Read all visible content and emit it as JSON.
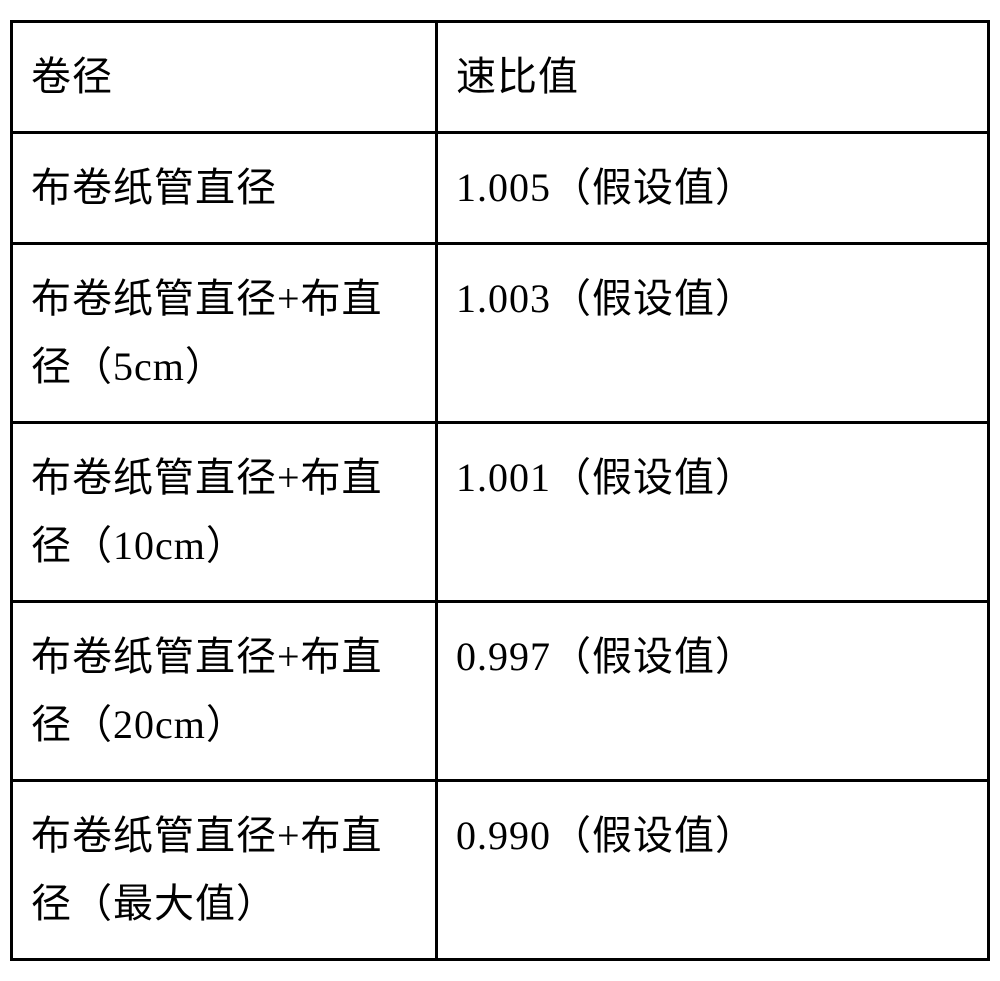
{
  "table": {
    "type": "table",
    "columns": [
      "卷径",
      "速比值"
    ],
    "rows": [
      [
        "布卷纸管直径",
        "1.005（假设值）"
      ],
      [
        "布卷纸管直径+布直径（5cm）",
        "1.003（假设值）"
      ],
      [
        "布卷纸管直径+布直径（10cm）",
        "1.001（假设值）"
      ],
      [
        "布卷纸管直径+布直径（20cm）",
        "0.997（假设值）"
      ],
      [
        "布卷纸管直径+布直径（最大值）",
        "0.990（假设值）"
      ]
    ],
    "border_color": "#000000",
    "border_width": 3,
    "background_color": "#ffffff",
    "font_family": "SimSun",
    "font_size": 40,
    "text_color": "#000000",
    "col_widths": [
      "43.5%",
      "56.5%"
    ],
    "cell_padding": "20px 18px",
    "line_height": 1.7
  }
}
